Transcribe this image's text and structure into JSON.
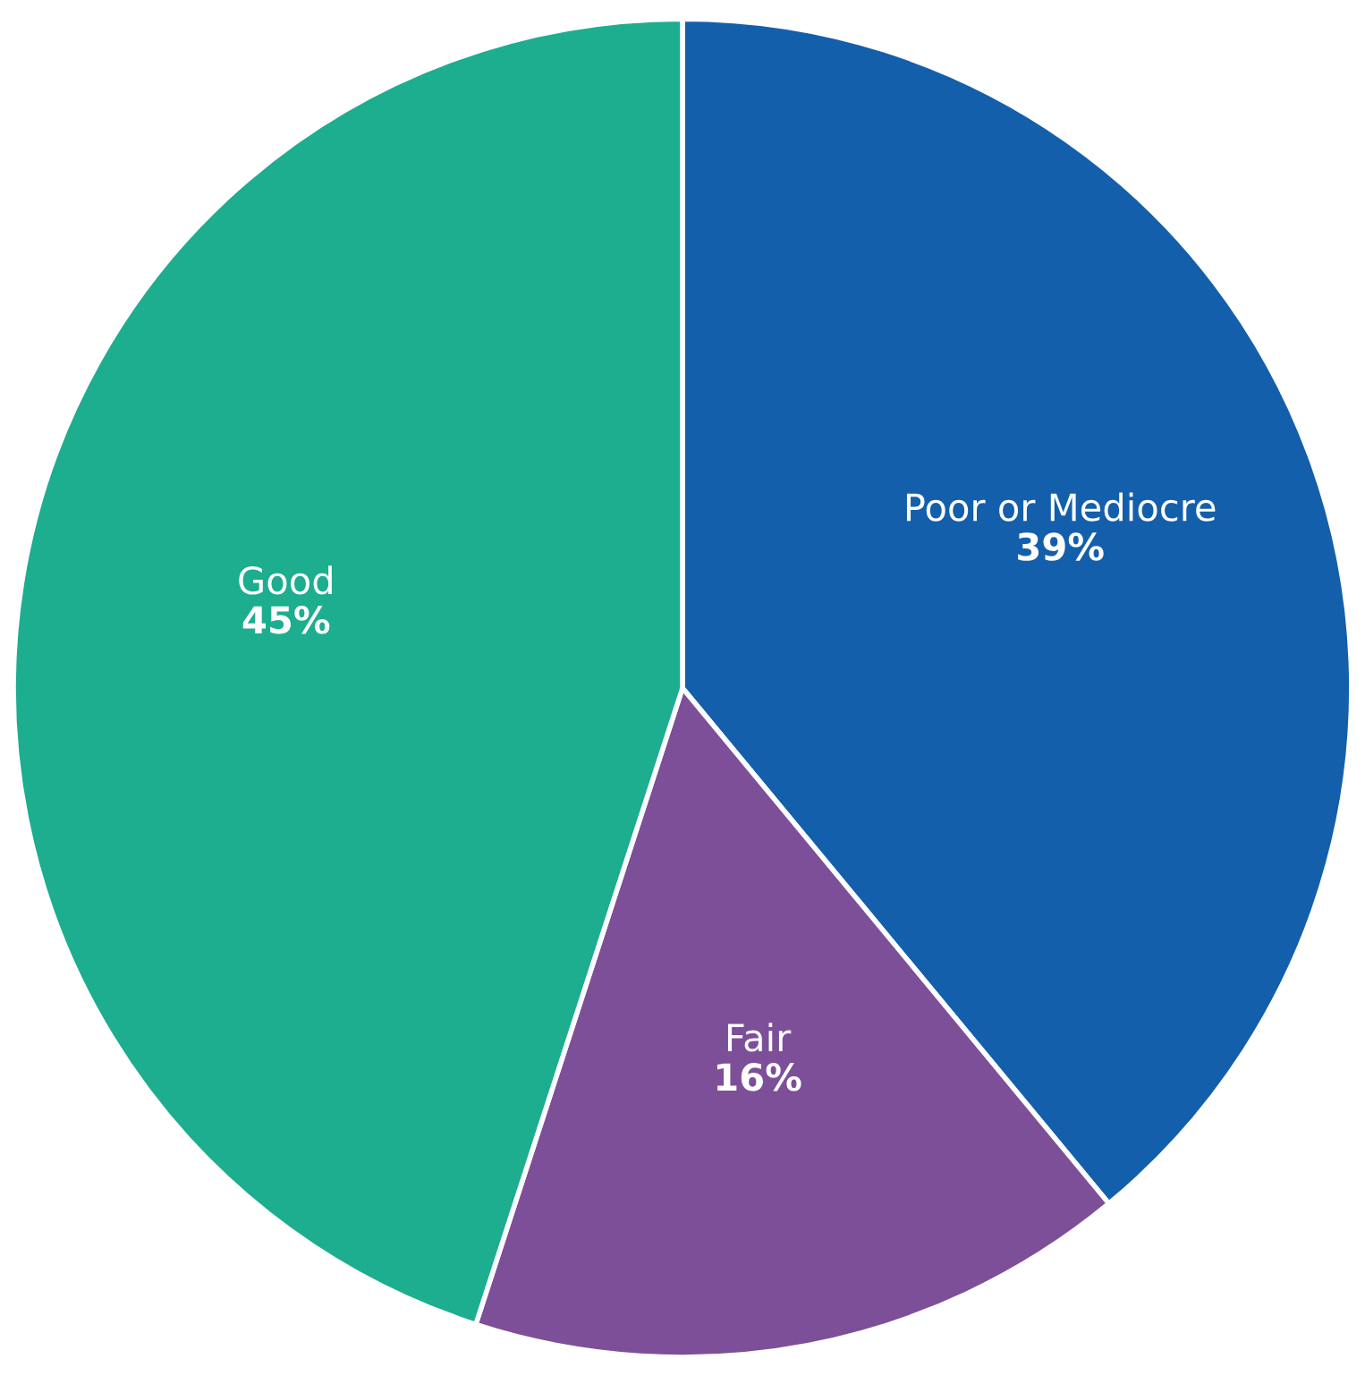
{
  "chart_data": {
    "type": "pie",
    "categories": [
      "Poor or Mediocre",
      "Fair",
      "Good"
    ],
    "values": [
      39,
      16,
      45
    ],
    "value_labels": [
      "39%",
      "16%",
      "45%"
    ],
    "colors": [
      "#135fab",
      "#7d4f98",
      "#1cae8e"
    ]
  }
}
